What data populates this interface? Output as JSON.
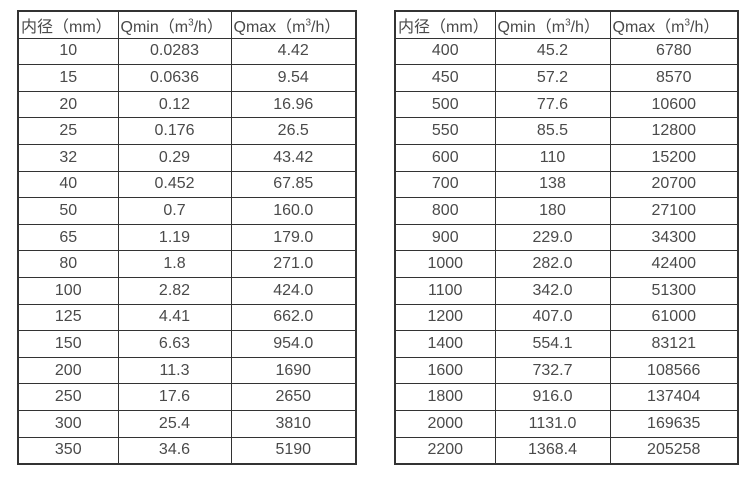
{
  "page": {
    "background": "#ffffff",
    "text_color": "#4a4a4a",
    "border_color": "#333333"
  },
  "tables": [
    {
      "name": "flow-table-small-diameters",
      "headers": [
        {
          "pre": "内径（mm）",
          "sup": "",
          "post": ""
        },
        {
          "pre": "Qmin（m",
          "sup": "3",
          "post": "/h）"
        },
        {
          "pre": "Qmax（m",
          "sup": "3",
          "post": "/h）"
        }
      ],
      "rows": [
        [
          "10",
          "0.0283",
          "4.42"
        ],
        [
          "15",
          "0.0636",
          "9.54"
        ],
        [
          "20",
          "0.12",
          "16.96"
        ],
        [
          "25",
          "0.176",
          "26.5"
        ],
        [
          "32",
          "0.29",
          "43.42"
        ],
        [
          "40",
          "0.452",
          "67.85"
        ],
        [
          "50",
          "0.7",
          "160.0"
        ],
        [
          "65",
          "1.19",
          "179.0"
        ],
        [
          "80",
          "1.8",
          "271.0"
        ],
        [
          "100",
          "2.82",
          "424.0"
        ],
        [
          "125",
          "4.41",
          "662.0"
        ],
        [
          "150",
          "6.63",
          "954.0"
        ],
        [
          "200",
          "11.3",
          "1690"
        ],
        [
          "250",
          "17.6",
          "2650"
        ],
        [
          "300",
          "25.4",
          "3810"
        ],
        [
          "350",
          "34.6",
          "5190"
        ]
      ]
    },
    {
      "name": "flow-table-large-diameters",
      "headers": [
        {
          "pre": "内径（mm）",
          "sup": "",
          "post": ""
        },
        {
          "pre": "Qmin（m",
          "sup": "3",
          "post": "/h）"
        },
        {
          "pre": "Qmax（m",
          "sup": "3",
          "post": "/h）"
        }
      ],
      "rows": [
        [
          "400",
          "45.2",
          "6780"
        ],
        [
          "450",
          "57.2",
          "8570"
        ],
        [
          "500",
          "77.6",
          "10600"
        ],
        [
          "550",
          "85.5",
          "12800"
        ],
        [
          "600",
          "110",
          "15200"
        ],
        [
          "700",
          "138",
          "20700"
        ],
        [
          "800",
          "180",
          "27100"
        ],
        [
          "900",
          "229.0",
          "34300"
        ],
        [
          "1000",
          "282.0",
          "42400"
        ],
        [
          "1100",
          "342.0",
          "51300"
        ],
        [
          "1200",
          "407.0",
          "61000"
        ],
        [
          "1400",
          "554.1",
          "83121"
        ],
        [
          "1600",
          "732.7",
          "108566"
        ],
        [
          "1800",
          "916.0",
          "137404"
        ],
        [
          "2000",
          "1131.0",
          "169635"
        ],
        [
          "2200",
          "1368.4",
          "205258"
        ]
      ]
    }
  ]
}
